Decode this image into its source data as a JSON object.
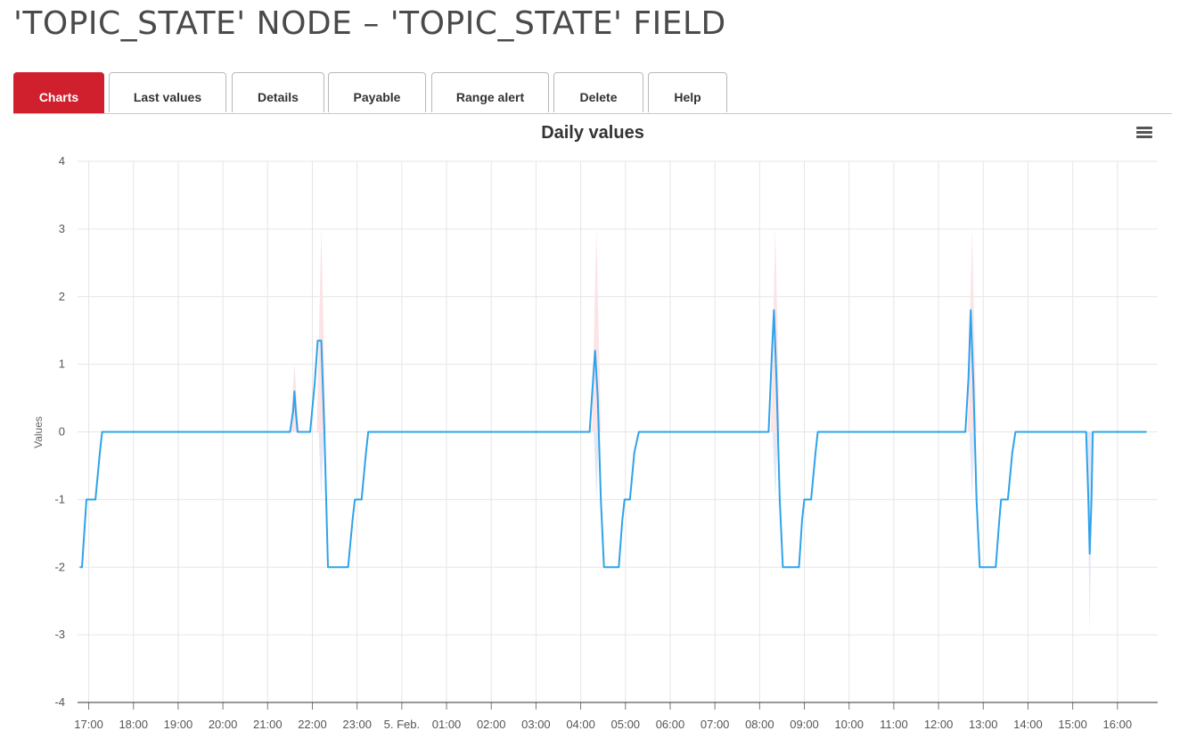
{
  "page": {
    "title": "'TOPIC_STATE' NODE – 'TOPIC_STATE' FIELD"
  },
  "tabs": [
    {
      "label": "Charts",
      "active": true
    },
    {
      "label": "Last values",
      "active": false
    },
    {
      "label": "Details",
      "active": false
    },
    {
      "label": "Payable",
      "active": false
    },
    {
      "label": "Range alert",
      "active": false
    },
    {
      "label": "Delete",
      "active": false
    },
    {
      "label": "Help",
      "active": false
    }
  ],
  "colors": {
    "accent": "#d0202e",
    "line": "#2ea3ea",
    "range_high": "#fbe3e6",
    "range_low": "#e6e7f5",
    "grid": "#e6e6e6"
  },
  "chart_menu": {
    "icon": "hamburger-menu-icon"
  },
  "chart_data": {
    "type": "line",
    "title": "Daily values",
    "ylabel": "Values",
    "xlabel": "",
    "ylim": [
      -4,
      4
    ],
    "yticks": [
      4,
      3,
      2,
      1,
      0,
      -1,
      -2,
      -3,
      -4
    ],
    "xlim": [
      16.75,
      40.9
    ],
    "xticks": [
      {
        "x": 17,
        "label": "17:00"
      },
      {
        "x": 18,
        "label": "18:00"
      },
      {
        "x": 19,
        "label": "19:00"
      },
      {
        "x": 20,
        "label": "20:00"
      },
      {
        "x": 21,
        "label": "21:00"
      },
      {
        "x": 22,
        "label": "22:00"
      },
      {
        "x": 23,
        "label": "23:00"
      },
      {
        "x": 24,
        "label": "5. Feb."
      },
      {
        "x": 25,
        "label": "01:00"
      },
      {
        "x": 26,
        "label": "02:00"
      },
      {
        "x": 27,
        "label": "03:00"
      },
      {
        "x": 28,
        "label": "04:00"
      },
      {
        "x": 29,
        "label": "05:00"
      },
      {
        "x": 30,
        "label": "06:00"
      },
      {
        "x": 31,
        "label": "07:00"
      },
      {
        "x": 32,
        "label": "08:00"
      },
      {
        "x": 33,
        "label": "09:00"
      },
      {
        "x": 34,
        "label": "10:00"
      },
      {
        "x": 35,
        "label": "11:00"
      },
      {
        "x": 36,
        "label": "12:00"
      },
      {
        "x": 37,
        "label": "13:00"
      },
      {
        "x": 38,
        "label": "14:00"
      },
      {
        "x": 39,
        "label": "15:00"
      },
      {
        "x": 40,
        "label": "16:00"
      }
    ],
    "grid": true,
    "legend": "none",
    "series": [
      {
        "type": "line",
        "points": [
          [
            16.8,
            -2
          ],
          [
            16.85,
            -2
          ],
          [
            16.9,
            -1.5
          ],
          [
            16.95,
            -1
          ],
          [
            17.15,
            -1
          ],
          [
            17.25,
            -0.3
          ],
          [
            17.3,
            0
          ],
          [
            21.5,
            0
          ],
          [
            21.57,
            0.3
          ],
          [
            21.6,
            0.6
          ],
          [
            21.63,
            0.3
          ],
          [
            21.67,
            0
          ],
          [
            21.95,
            0
          ],
          [
            22.05,
            0.7
          ],
          [
            22.12,
            1.35
          ],
          [
            22.2,
            1.35
          ],
          [
            22.27,
            0
          ],
          [
            22.35,
            -2
          ],
          [
            22.8,
            -2
          ],
          [
            22.9,
            -1.3
          ],
          [
            22.95,
            -1
          ],
          [
            23.1,
            -1
          ],
          [
            23.2,
            -0.3
          ],
          [
            23.25,
            0
          ],
          [
            28.2,
            0
          ],
          [
            28.27,
            0.7
          ],
          [
            28.32,
            1.2
          ],
          [
            28.38,
            0.5
          ],
          [
            28.45,
            -1
          ],
          [
            28.52,
            -2
          ],
          [
            28.85,
            -2
          ],
          [
            28.93,
            -1.3
          ],
          [
            28.98,
            -1
          ],
          [
            29.1,
            -1
          ],
          [
            29.2,
            -0.3
          ],
          [
            29.3,
            0
          ],
          [
            32.2,
            0
          ],
          [
            32.27,
            1.1
          ],
          [
            32.32,
            1.8
          ],
          [
            32.38,
            0.7
          ],
          [
            32.45,
            -1
          ],
          [
            32.52,
            -2
          ],
          [
            32.88,
            -2
          ],
          [
            32.95,
            -1.3
          ],
          [
            33,
            -1
          ],
          [
            33.15,
            -1
          ],
          [
            33.25,
            -0.3
          ],
          [
            33.3,
            0
          ],
          [
            36.6,
            0
          ],
          [
            36.67,
            0.8
          ],
          [
            36.72,
            1.8
          ],
          [
            36.78,
            0.7
          ],
          [
            36.85,
            -1
          ],
          [
            36.92,
            -2
          ],
          [
            37.28,
            -2
          ],
          [
            37.36,
            -1.3
          ],
          [
            37.4,
            -1
          ],
          [
            37.55,
            -1
          ],
          [
            37.65,
            -0.3
          ],
          [
            37.72,
            0
          ],
          [
            39.3,
            0
          ],
          [
            39.35,
            -1
          ],
          [
            39.38,
            -1.8
          ],
          [
            39.42,
            -1
          ],
          [
            39.45,
            0
          ],
          [
            40.65,
            0
          ]
        ]
      },
      {
        "type": "range_spikes",
        "spikes": [
          {
            "x": 21.6,
            "high": 1,
            "low": 0
          },
          {
            "x": 22.2,
            "high": 3,
            "low": -1
          },
          {
            "x": 28.35,
            "high": 3,
            "low": -1
          },
          {
            "x": 32.35,
            "high": 3,
            "low": -1
          },
          {
            "x": 36.75,
            "high": 3,
            "low": -1
          },
          {
            "x": 39.38,
            "high": 0,
            "low": -3
          }
        ]
      }
    ]
  }
}
